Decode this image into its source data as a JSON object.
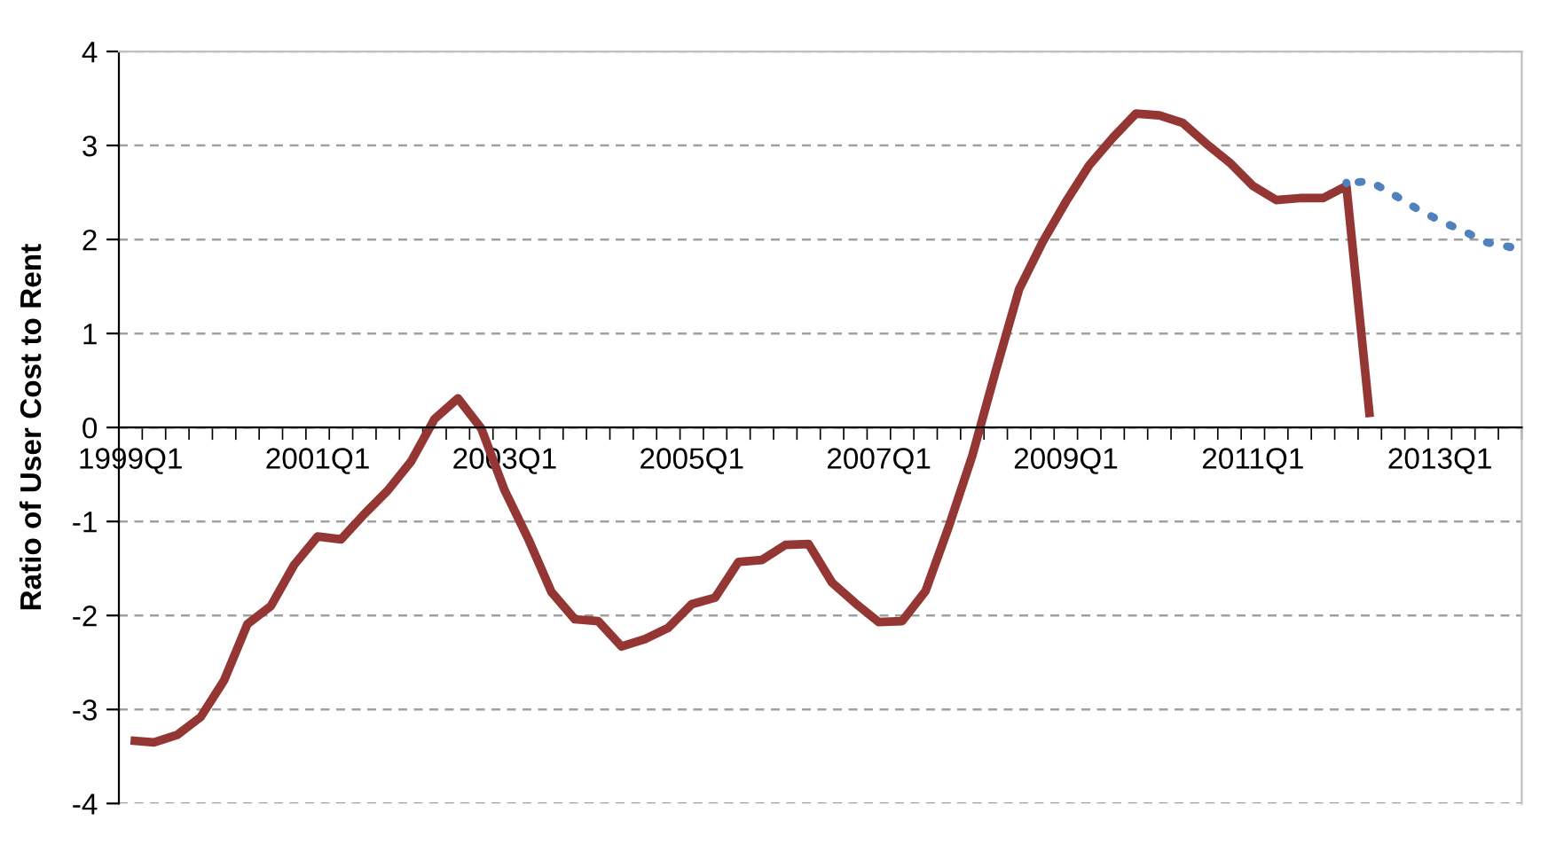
{
  "chart_data": {
    "type": "line",
    "ylabel": "Ratio of User Cost to Rent",
    "categories": [
      "1999Q1",
      null,
      null,
      null,
      null,
      null,
      null,
      null,
      "2001Q1",
      null,
      null,
      null,
      null,
      null,
      null,
      null,
      "2003Q1",
      null,
      null,
      null,
      null,
      null,
      null,
      null,
      "2005Q1",
      null,
      null,
      null,
      null,
      null,
      null,
      null,
      "2007Q1",
      null,
      null,
      null,
      null,
      null,
      null,
      null,
      "2009Q1",
      null,
      null,
      null,
      null,
      null,
      null,
      null,
      "2011Q1",
      null,
      null,
      null,
      null,
      null,
      null,
      null,
      "2013Q1",
      null,
      null,
      null
    ],
    "series": [
      {
        "color": "#943634",
        "line_style": "solid",
        "values": [
          -3.33,
          -3.35,
          -3.27,
          -3.08,
          -2.69,
          -2.09,
          -1.9,
          -1.46,
          -1.16,
          -1.19,
          -0.92,
          -0.67,
          -0.36,
          0.09,
          0.31,
          -0.01,
          -0.67,
          -1.18,
          -1.75,
          -2.04,
          -2.06,
          -2.33,
          -2.25,
          -2.13,
          -1.88,
          -1.81,
          -1.43,
          -1.41,
          -1.25,
          -1.24,
          -1.65,
          -1.87,
          -2.07,
          -2.06,
          -1.74,
          -1.05,
          -0.3,
          0.6,
          1.47,
          1.97,
          2.4,
          2.79,
          3.08,
          3.34,
          3.32,
          3.24,
          3.02,
          2.82,
          2.57,
          2.42,
          2.44,
          2.44,
          2.57,
          0.11,
          null,
          null,
          null,
          null,
          null,
          null
        ]
      },
      {
        "color": "#4f81bd",
        "line_style": "dotted",
        "values": [
          null,
          null,
          null,
          null,
          null,
          null,
          null,
          null,
          null,
          null,
          null,
          null,
          null,
          null,
          null,
          null,
          null,
          null,
          null,
          null,
          null,
          null,
          null,
          null,
          null,
          null,
          null,
          null,
          null,
          null,
          null,
          null,
          null,
          null,
          null,
          null,
          null,
          null,
          null,
          null,
          null,
          null,
          null,
          null,
          null,
          null,
          null,
          null,
          null,
          null,
          null,
          null,
          2.6,
          2.62,
          2.48,
          2.33,
          2.2,
          2.09,
          1.97,
          1.92
        ]
      }
    ],
    "ylim": [
      -4,
      4
    ],
    "yticks": [
      -4,
      -3,
      -2,
      -1,
      0,
      1,
      2,
      3,
      4
    ],
    "grid": "y"
  }
}
